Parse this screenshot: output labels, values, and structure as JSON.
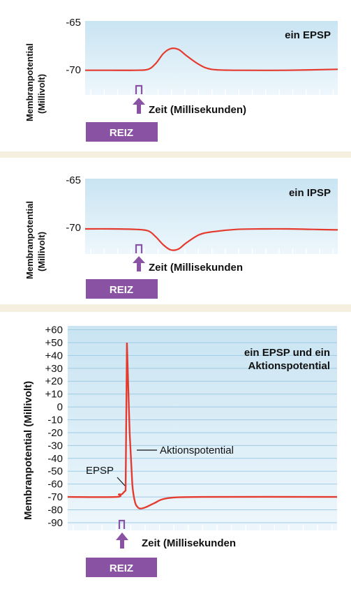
{
  "colors": {
    "plot_gradient_top": "#c9e4f2",
    "plot_gradient_bottom": "#eef7fc",
    "gridline": "#9fcbe3",
    "trace": "#e53b2f",
    "stimulus": "#8a52a3",
    "panel_bg": "#ffffff",
    "page_bg": "#f4efdf"
  },
  "panels": [
    {
      "ylabel_line1": "Membranpotential",
      "ylabel_line2": "(Millivolt)",
      "title": "ein EPSP",
      "xlabel": "Zeit (Millisekunden)",
      "stimulus_label": "REIZ"
    },
    {
      "ylabel_line1": "Membranpotential",
      "ylabel_line2": "(Millivolt)",
      "title": "ein IPSP",
      "xlabel": "Zeit (Millisekunden",
      "stimulus_label": "REIZ"
    },
    {
      "ylabel": "Membranpotential (Millivolt)",
      "title_line1": "ein EPSP und ein",
      "title_line2": "Aktionspotential",
      "xlabel": "Zeit (Millisekunden",
      "stimulus_label": "REIZ",
      "annotation_epsp": "EPSP",
      "annotation_ap": "Aktionspotential"
    }
  ],
  "chart_data": [
    {
      "type": "line",
      "title": "ein EPSP",
      "xlabel": "Zeit (Millisekunden)",
      "ylabel": "Membranpotential (Millivolt)",
      "ylim": [
        -72.5,
        -65
      ],
      "yticks": [
        "-65",
        "-70"
      ],
      "ytick_values": [
        -65,
        -70
      ],
      "x": [
        0,
        10,
        20,
        25,
        28,
        31,
        34,
        37,
        40,
        45,
        50,
        60,
        80,
        100
      ],
      "series": [
        {
          "values": [
            -70,
            -70,
            -70,
            -69.9,
            -69.3,
            -68.3,
            -67.8,
            -67.9,
            -68.5,
            -69.4,
            -69.9,
            -70,
            -70,
            -69.9
          ]
        }
      ],
      "stimulus_x": 25,
      "grid": false
    },
    {
      "type": "line",
      "title": "ein IPSP",
      "xlabel": "Zeit (Millisekunden",
      "ylabel": "Membranpotential (Millivolt)",
      "ylim": [
        -72.5,
        -65
      ],
      "yticks": [
        "-65",
        "-70"
      ],
      "ytick_values": [
        -65,
        -70
      ],
      "x": [
        0,
        10,
        20,
        25,
        28,
        31,
        34,
        37,
        40,
        45,
        50,
        60,
        70,
        80,
        90,
        100
      ],
      "series": [
        {
          "values": [
            -70,
            -70,
            -70.05,
            -70.2,
            -70.8,
            -71.6,
            -72.1,
            -72.0,
            -71.4,
            -70.6,
            -70.3,
            -70.05,
            -70.0,
            -70.0,
            -70.05,
            -70.1
          ]
        }
      ],
      "stimulus_x": 25,
      "grid": false
    },
    {
      "type": "line",
      "title": "ein EPSP und ein Aktionspotential",
      "xlabel": "Zeit (Millisekunden",
      "ylabel": "Membranpotential (Millivolt)",
      "ylim": [
        -96,
        63
      ],
      "yticks": [
        "+60",
        "+50",
        "+40",
        "+30",
        "+20",
        "+10",
        "0",
        "-10",
        "-20",
        "-30",
        "-40",
        "-50",
        "-60",
        "-70",
        "-80",
        "-90"
      ],
      "ytick_values": [
        60,
        50,
        40,
        30,
        20,
        10,
        0,
        -10,
        -20,
        -30,
        -40,
        -50,
        -60,
        -70,
        -80,
        -90
      ],
      "x": [
        0,
        18,
        19,
        20,
        21,
        21.5,
        22,
        23,
        24,
        25,
        26,
        27,
        29,
        32,
        37,
        50,
        100
      ],
      "series": [
        {
          "values": [
            -70,
            -70,
            -68,
            -68,
            -66,
            -65,
            50,
            -20,
            -60,
            -74,
            -78,
            -79,
            -78,
            -75,
            -71,
            -70,
            -70
          ]
        }
      ],
      "stimulus_x": 18,
      "grid": true,
      "annotations": [
        {
          "text": "EPSP",
          "x": 21,
          "y": -66
        },
        {
          "text": "Aktionspotential",
          "x": 23,
          "y": -20
        }
      ]
    }
  ]
}
